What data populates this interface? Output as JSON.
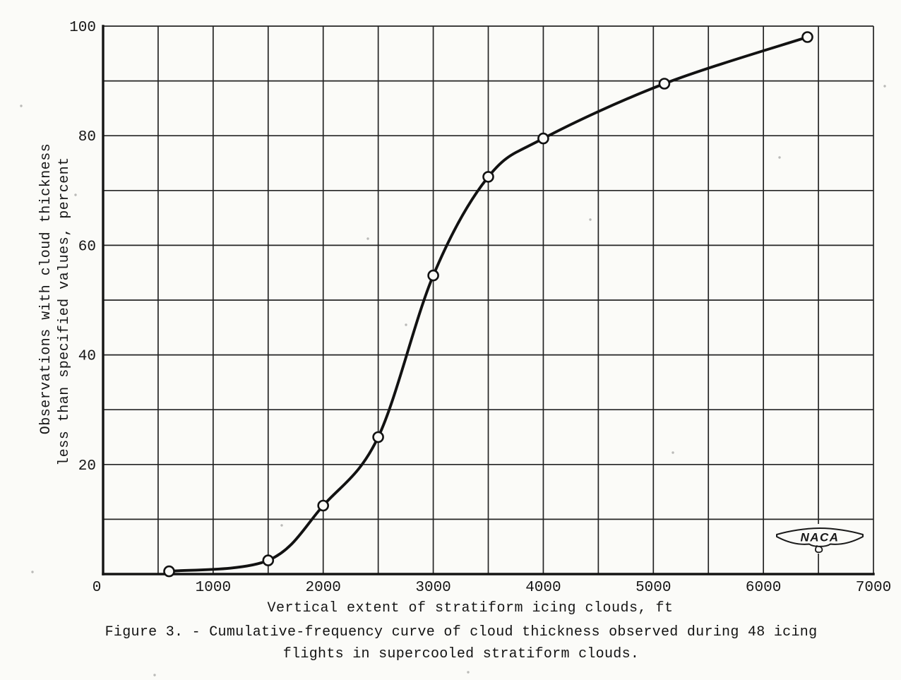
{
  "page": {
    "background": "#fbfbf8",
    "ink_color": "#161616"
  },
  "figure_caption": {
    "line1": "Figure 3. - Cumulative-frequency curve of cloud thickness observed during 48 icing",
    "line2": "flights in supercooled stratiform clouds."
  },
  "logo": {
    "text": "NACA"
  },
  "chart_data": {
    "type": "line",
    "title": "",
    "xlabel": "Vertical extent of stratiform icing clouds, ft",
    "ylabel_line1": "Observations with cloud thickness",
    "ylabel_line2": "less than specified values, percent",
    "xlim": [
      0,
      7000
    ],
    "ylim": [
      0,
      100
    ],
    "x_major_ticks": [
      0,
      1000,
      2000,
      3000,
      4000,
      5000,
      6000,
      7000
    ],
    "y_major_ticks": [
      20,
      40,
      60,
      80,
      100
    ],
    "x_grid_step": 500,
    "y_grid_step": 10,
    "grid": true,
    "legend": "none",
    "series": [
      {
        "name": "cumulative-frequency-of-cloud-thickness",
        "marker": "open-circle",
        "x": [
          600,
          1500,
          2000,
          2500,
          3000,
          3500,
          4000,
          5100,
          6400
        ],
        "y": [
          0.5,
          2.5,
          12.5,
          25,
          54.5,
          72.5,
          79.5,
          89.5,
          98
        ]
      }
    ]
  }
}
